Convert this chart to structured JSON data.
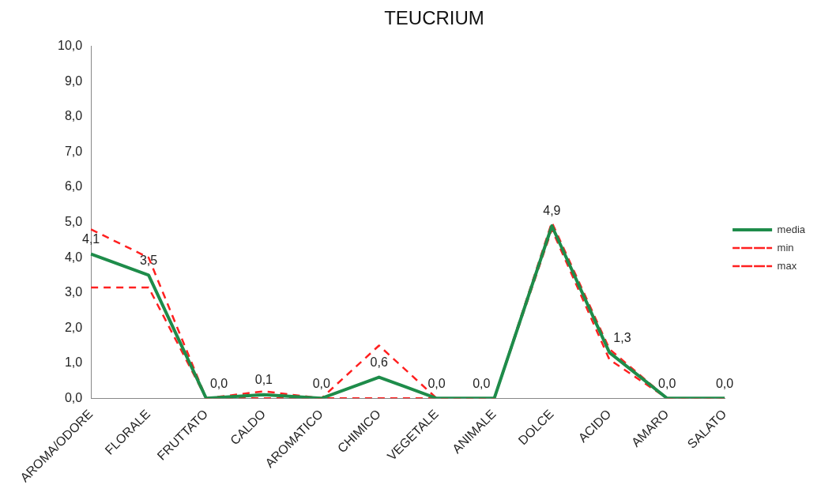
{
  "chart_data": {
    "type": "line",
    "title": "TEUCRIUM",
    "categories": [
      "AROMA/ODORE",
      "FLORALE",
      "FRUTTATO",
      "CALDO",
      "AROMATICO",
      "CHIMICO",
      "VEGETALE",
      "ANIMALE",
      "DOLCE",
      "ACIDO",
      "AMARO",
      "SALATO"
    ],
    "series": [
      {
        "name": "media",
        "color": "#1e8c4a",
        "line_style": "solid",
        "values": [
          4.1,
          3.5,
          0,
          0.1,
          0,
          0.6,
          0,
          0,
          4.9,
          1.3,
          0,
          0
        ],
        "value_labels": [
          "4,1",
          "3,5",
          "0,0",
          "0,1",
          "0,0",
          "0,6",
          "0,0",
          "0,0",
          "4,9",
          "1,3",
          "0,0",
          "0,0"
        ]
      },
      {
        "name": "min",
        "color": "#ff2020",
        "line_style": "dashed",
        "values": [
          3.15,
          3.15,
          0,
          0,
          0,
          0,
          0,
          0,
          4.8,
          1.1,
          0,
          0
        ]
      },
      {
        "name": "max",
        "color": "#ff2020",
        "line_style": "dashed",
        "values": [
          4.8,
          4.0,
          0,
          0.2,
          0,
          1.5,
          0,
          0,
          5.0,
          1.4,
          0,
          0
        ]
      }
    ],
    "ylim": [
      0,
      10
    ],
    "yticks": [
      {
        "value": 0,
        "label": "0,0"
      },
      {
        "value": 1,
        "label": "1,0"
      },
      {
        "value": 2,
        "label": "2,0"
      },
      {
        "value": 3,
        "label": "3,0"
      },
      {
        "value": 4,
        "label": "4,0"
      },
      {
        "value": 5,
        "label": "5,0"
      },
      {
        "value": 6,
        "label": "6,0"
      },
      {
        "value": 7,
        "label": "7,0"
      },
      {
        "value": 8,
        "label": "8,0"
      },
      {
        "value": 9,
        "label": "9,0"
      },
      {
        "value": 10,
        "label": "10,0"
      }
    ],
    "grid": false,
    "legend": "right",
    "marker": "none"
  }
}
